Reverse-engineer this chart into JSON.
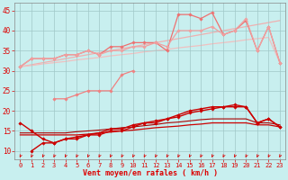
{
  "bg_color": "#c8efef",
  "grid_color": "#a0c8c8",
  "red_dark": "#dd0000",
  "red_mid": "#ee6666",
  "red_light": "#f0a0a0",
  "xlabel": "Vent moyen/en rafales ( km/h )",
  "xlim": [
    -0.5,
    23.5
  ],
  "ylim": [
    8,
    47
  ],
  "yticks": [
    10,
    15,
    20,
    25,
    30,
    35,
    40,
    45
  ],
  "xticks": [
    0,
    1,
    2,
    3,
    4,
    5,
    6,
    7,
    8,
    9,
    10,
    11,
    12,
    13,
    14,
    15,
    16,
    17,
    18,
    19,
    20,
    21,
    22,
    23
  ],
  "series": [
    {
      "name": "pale_straight_top",
      "x_full": true,
      "x": [
        0,
        1,
        2,
        3,
        4,
        5,
        6,
        7,
        8,
        9,
        10,
        11,
        12,
        13,
        14,
        15,
        16,
        17,
        18,
        19,
        20,
        21,
        22,
        23
      ],
      "y": [
        31,
        31.5,
        32,
        32.5,
        33,
        33.5,
        34,
        34.5,
        35,
        35.5,
        36,
        36.5,
        37,
        37.5,
        38,
        38.5,
        39,
        39.5,
        40,
        40.5,
        41,
        41.5,
        42,
        42.5
      ],
      "color": "#f0b0b0",
      "lw": 0.9,
      "marker": null,
      "ms": 0,
      "zorder": 1
    },
    {
      "name": "pale_straight_2nd",
      "x_full": true,
      "x": [
        0,
        1,
        2,
        3,
        4,
        5,
        6,
        7,
        8,
        9,
        10,
        11,
        12,
        13,
        14,
        15,
        16,
        17,
        18,
        19,
        20,
        21,
        22,
        23
      ],
      "y": [
        31,
        31.3,
        31.7,
        32,
        32.3,
        32.7,
        33,
        33.3,
        33.7,
        34,
        34.3,
        34.7,
        35,
        35.3,
        35.7,
        36,
        36.3,
        36.7,
        37,
        37.3,
        37.7,
        38,
        38.3,
        32
      ],
      "color": "#f0c0c0",
      "lw": 0.9,
      "marker": null,
      "ms": 0,
      "zorder": 1
    },
    {
      "name": "pale_markers_upper",
      "x": [
        0,
        1,
        2,
        3,
        4,
        5,
        6,
        7,
        8,
        9,
        10,
        11,
        12,
        13,
        14,
        15,
        16,
        17,
        18,
        19,
        20,
        21,
        22,
        23
      ],
      "y": [
        31,
        33,
        33,
        33,
        34,
        34,
        35,
        34,
        36,
        36,
        37,
        37,
        37,
        35,
        44,
        44,
        43,
        44.5,
        39,
        40,
        42.5,
        35,
        41,
        32
      ],
      "color": "#ee7070",
      "lw": 0.9,
      "marker": "D",
      "ms": 1.8,
      "zorder": 3
    },
    {
      "name": "pale_markers_lower",
      "x": [
        0,
        1,
        2,
        3,
        4,
        5,
        6,
        7,
        8,
        9,
        10,
        11,
        12,
        13,
        14,
        15,
        16,
        17,
        18,
        19,
        20,
        21,
        22,
        23
      ],
      "y": [
        31,
        33,
        33,
        33,
        34,
        34,
        35,
        34,
        35,
        35,
        36,
        36,
        37,
        36,
        40,
        40,
        40,
        41,
        39,
        40,
        43,
        35,
        41,
        32
      ],
      "color": "#f0a0a0",
      "lw": 0.9,
      "marker": "D",
      "ms": 1.8,
      "zorder": 3
    },
    {
      "name": "pale_middle_partial",
      "x": [
        3,
        4,
        5,
        6,
        7,
        8,
        9,
        10
      ],
      "y": [
        23,
        23,
        24,
        25,
        25,
        25,
        29,
        30
      ],
      "color": "#f08080",
      "lw": 0.9,
      "marker": "D",
      "ms": 1.8,
      "zorder": 3
    },
    {
      "name": "dark_diag_bottom_straight",
      "x": [
        0,
        1,
        2,
        3,
        4,
        5,
        6,
        7,
        8,
        9,
        10,
        11,
        12,
        13,
        14,
        15,
        16,
        17,
        18,
        19,
        20,
        21,
        22,
        23
      ],
      "y": [
        14,
        14,
        14,
        14,
        14,
        14,
        14.2,
        14.5,
        14.7,
        15,
        15.2,
        15.5,
        15.8,
        16,
        16.2,
        16.5,
        16.7,
        17,
        17,
        17,
        17,
        16.5,
        16.5,
        16
      ],
      "color": "#cc0000",
      "lw": 0.9,
      "marker": null,
      "ms": 0,
      "zorder": 2
    },
    {
      "name": "dark_upper_line",
      "x": [
        0,
        1,
        2,
        3,
        4,
        5,
        6,
        7,
        8,
        9,
        10,
        11,
        12,
        13,
        14,
        15,
        16,
        17,
        18,
        19,
        20,
        21,
        22,
        23
      ],
      "y": [
        17,
        15,
        13,
        12,
        13,
        13.5,
        14,
        14.5,
        15.5,
        15.5,
        16.5,
        17,
        17.5,
        18,
        19,
        20,
        20.5,
        21,
        21,
        21.5,
        21,
        17,
        18,
        16
      ],
      "color": "#cc0000",
      "lw": 1.0,
      "marker": "D",
      "ms": 1.8,
      "zorder": 4
    },
    {
      "name": "dark_lower_line",
      "x": [
        1,
        2,
        3,
        4,
        5,
        6,
        7,
        8,
        9,
        10,
        11,
        12,
        13,
        14,
        15,
        16,
        17,
        18,
        19,
        20,
        21,
        22,
        23
      ],
      "y": [
        10,
        12,
        12,
        13,
        13,
        14,
        14,
        15,
        15,
        16,
        17,
        17,
        18,
        18.5,
        19.5,
        20,
        20.5,
        21,
        21,
        21,
        17,
        18,
        16
      ],
      "color": "#cc0000",
      "lw": 1.0,
      "marker": "D",
      "ms": 1.8,
      "zorder": 4
    },
    {
      "name": "dark_mid_straight",
      "x": [
        0,
        1,
        2,
        3,
        4,
        5,
        6,
        7,
        8,
        9,
        10,
        11,
        12,
        13,
        14,
        15,
        16,
        17,
        18,
        19,
        20,
        21,
        22,
        23
      ],
      "y": [
        14.5,
        14.5,
        14.5,
        14.5,
        14.5,
        14.8,
        15,
        15.2,
        15.5,
        15.8,
        16,
        16.3,
        16.6,
        17,
        17.2,
        17.5,
        17.8,
        18,
        18,
        18,
        18,
        17,
        17,
        16.5
      ],
      "color": "#aa0000",
      "lw": 0.8,
      "marker": null,
      "ms": 0,
      "zorder": 2
    }
  ],
  "arrows_x": [
    0,
    1,
    2,
    3,
    4,
    5,
    6,
    7,
    8,
    9,
    10,
    11,
    12,
    13,
    14,
    15,
    16,
    17,
    18,
    19,
    20,
    21,
    22,
    23
  ],
  "arrow_color": "#dd0000"
}
